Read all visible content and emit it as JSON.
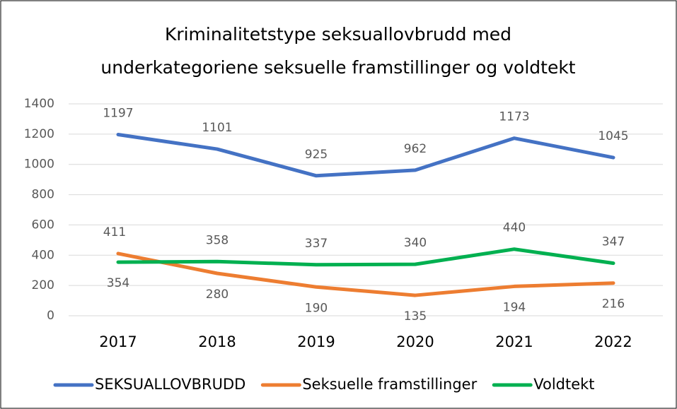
{
  "chart_data": {
    "type": "line",
    "title": [
      "Kriminalitetstype seksuallovbrudd med",
      "underkategoriene seksuelle framstillinger og voldtekt"
    ],
    "categories": [
      "2017",
      "2018",
      "2019",
      "2020",
      "2021",
      "2022"
    ],
    "series": [
      {
        "name": "SEKSUALLOVBRUDD",
        "color": "#4472c4",
        "values": [
          1197,
          1101,
          925,
          962,
          1173,
          1045
        ]
      },
      {
        "name": "Seksuelle framstillinger",
        "color": "#ed7d31",
        "values": [
          411,
          280,
          190,
          135,
          194,
          216
        ]
      },
      {
        "name": "Voldtekt",
        "color": "#00b050",
        "values": [
          354,
          358,
          337,
          340,
          440,
          347
        ]
      }
    ],
    "ylim": [
      0,
      1400
    ],
    "yticks": [
      0,
      200,
      400,
      600,
      800,
      1000,
      1200,
      1400
    ],
    "grid": true,
    "legend": "bottom"
  }
}
